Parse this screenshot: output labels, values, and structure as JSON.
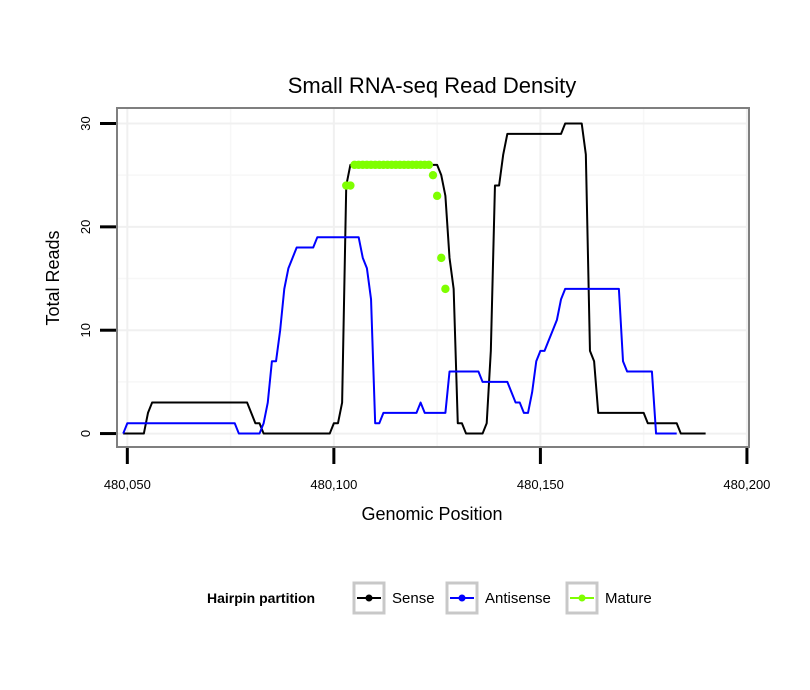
{
  "chart_data": {
    "type": "line",
    "title": "Small RNA-seq Read Density",
    "xlabel": "Genomic Position",
    "ylabel": "Total Reads",
    "xlim": [
      480047.5,
      480200.5
    ],
    "ylim": [
      -1.3,
      31.5
    ],
    "x_ticks": [
      480050,
      480100,
      480150,
      480200
    ],
    "x_tick_labels": [
      "480,050",
      "480,100",
      "480,150",
      "480,200"
    ],
    "y_ticks": [
      0,
      10,
      20,
      30
    ],
    "y_tick_labels": [
      "0",
      "10",
      "20",
      "30"
    ],
    "grid": true,
    "legend": {
      "title": "Hairpin partition",
      "position": "bottom",
      "entries": [
        "Sense",
        "Antisense",
        "Mature"
      ]
    },
    "series": [
      {
        "name": "Sense",
        "color": "#000000",
        "points": [
          [
            480049,
            0
          ],
          [
            480054,
            0
          ],
          [
            480055,
            2
          ],
          [
            480056,
            3
          ],
          [
            480057,
            3
          ],
          [
            480079,
            3
          ],
          [
            480080,
            2
          ],
          [
            480081,
            1
          ],
          [
            480082,
            1
          ],
          [
            480083,
            0
          ],
          [
            480098,
            0
          ],
          [
            480099,
            0
          ],
          [
            480100,
            1
          ],
          [
            480101,
            1
          ],
          [
            480102,
            3
          ],
          [
            480103,
            24
          ],
          [
            480104,
            26
          ],
          [
            480125,
            26
          ],
          [
            480126,
            25
          ],
          [
            480127,
            23
          ],
          [
            480128,
            17
          ],
          [
            480129,
            14
          ],
          [
            480130,
            1
          ],
          [
            480131,
            1
          ],
          [
            480132,
            0
          ],
          [
            480136,
            0
          ],
          [
            480137,
            1
          ],
          [
            480138,
            8
          ],
          [
            480139,
            24
          ],
          [
            480140,
            24
          ],
          [
            480141,
            27
          ],
          [
            480142,
            29
          ],
          [
            480155,
            29
          ],
          [
            480156,
            30
          ],
          [
            480160,
            30
          ],
          [
            480161,
            27
          ],
          [
            480162,
            8
          ],
          [
            480163,
            7
          ],
          [
            480164,
            2
          ],
          [
            480175,
            2
          ],
          [
            480176,
            1
          ],
          [
            480183,
            1
          ],
          [
            480184,
            0
          ],
          [
            480190,
            0
          ]
        ]
      },
      {
        "name": "Antisense",
        "color": "#0000ff",
        "points": [
          [
            480049,
            0
          ],
          [
            480050,
            1
          ],
          [
            480076,
            1
          ],
          [
            480077,
            0
          ],
          [
            480082,
            0
          ],
          [
            480083,
            1
          ],
          [
            480084,
            3
          ],
          [
            480085,
            7
          ],
          [
            480086,
            7
          ],
          [
            480087,
            10
          ],
          [
            480088,
            14
          ],
          [
            480089,
            16
          ],
          [
            480090,
            17
          ],
          [
            480091,
            18
          ],
          [
            480095,
            18
          ],
          [
            480096,
            19
          ],
          [
            480105,
            19
          ],
          [
            480106,
            19
          ],
          [
            480107,
            17
          ],
          [
            480108,
            16
          ],
          [
            480109,
            13
          ],
          [
            480110,
            1
          ],
          [
            480111,
            1
          ],
          [
            480112,
            2
          ],
          [
            480120,
            2
          ],
          [
            480121,
            3
          ],
          [
            480122,
            2
          ],
          [
            480127,
            2
          ],
          [
            480128,
            6
          ],
          [
            480135,
            6
          ],
          [
            480136,
            5
          ],
          [
            480142,
            5
          ],
          [
            480143,
            4
          ],
          [
            480144,
            3
          ],
          [
            480145,
            3
          ],
          [
            480146,
            2
          ],
          [
            480147,
            2
          ],
          [
            480148,
            4
          ],
          [
            480149,
            7
          ],
          [
            480150,
            8
          ],
          [
            480151,
            8
          ],
          [
            480152,
            9
          ],
          [
            480153,
            10
          ],
          [
            480154,
            11
          ],
          [
            480155,
            13
          ],
          [
            480156,
            14
          ],
          [
            480169,
            14
          ],
          [
            480170,
            7
          ],
          [
            480171,
            6
          ],
          [
            480177,
            6
          ],
          [
            480178,
            0
          ],
          [
            480183,
            0
          ]
        ]
      },
      {
        "name": "Mature",
        "color": "#7fff00",
        "points": [
          [
            480103,
            24
          ],
          [
            480104,
            24
          ],
          [
            480105,
            26
          ],
          [
            480106,
            26
          ],
          [
            480107,
            26
          ],
          [
            480108,
            26
          ],
          [
            480109,
            26
          ],
          [
            480110,
            26
          ],
          [
            480111,
            26
          ],
          [
            480112,
            26
          ],
          [
            480113,
            26
          ],
          [
            480114,
            26
          ],
          [
            480115,
            26
          ],
          [
            480116,
            26
          ],
          [
            480117,
            26
          ],
          [
            480118,
            26
          ],
          [
            480119,
            26
          ],
          [
            480120,
            26
          ],
          [
            480121,
            26
          ],
          [
            480122,
            26
          ],
          [
            480123,
            26
          ],
          [
            480124,
            25
          ],
          [
            480125,
            23
          ],
          [
            480126,
            17
          ],
          [
            480127,
            14
          ]
        ]
      }
    ]
  }
}
